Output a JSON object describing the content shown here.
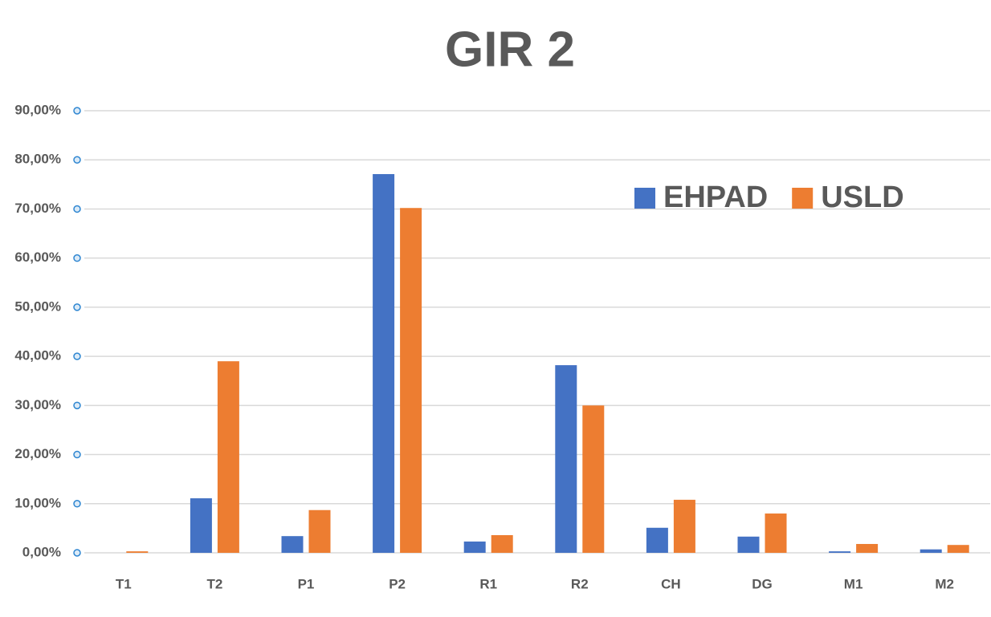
{
  "chart_data": {
    "type": "bar",
    "title": "GIR 2",
    "categories": [
      "T1",
      "T2",
      "P1",
      "P2",
      "R1",
      "R2",
      "CH",
      "DG",
      "M1",
      "M2"
    ],
    "series": [
      {
        "name": "EHPAD",
        "color": "#4472c4",
        "values": [
          0,
          11.1,
          3.4,
          77.1,
          2.3,
          38.2,
          5.1,
          3.3,
          0.3,
          0.7
        ]
      },
      {
        "name": "USLD",
        "color": "#ed7d31",
        "values": [
          0.3,
          39.0,
          8.7,
          70.2,
          3.6,
          30.0,
          10.8,
          8.0,
          1.8,
          1.6
        ]
      }
    ],
    "ylim": [
      0,
      90
    ],
    "yticks": [
      {
        "value": 0,
        "label": "0,00%"
      },
      {
        "value": 10,
        "label": "10,00%"
      },
      {
        "value": 20,
        "label": "20,00%"
      },
      {
        "value": 30,
        "label": "30,00%"
      },
      {
        "value": 40,
        "label": "40,00%"
      },
      {
        "value": 50,
        "label": "50,00%"
      },
      {
        "value": 60,
        "label": "60,00%"
      },
      {
        "value": 70,
        "label": "70,00%"
      },
      {
        "value": 80,
        "label": "80,00%"
      },
      {
        "value": 90,
        "label": "90,00%"
      }
    ],
    "grid": true,
    "legend": "top-right"
  }
}
